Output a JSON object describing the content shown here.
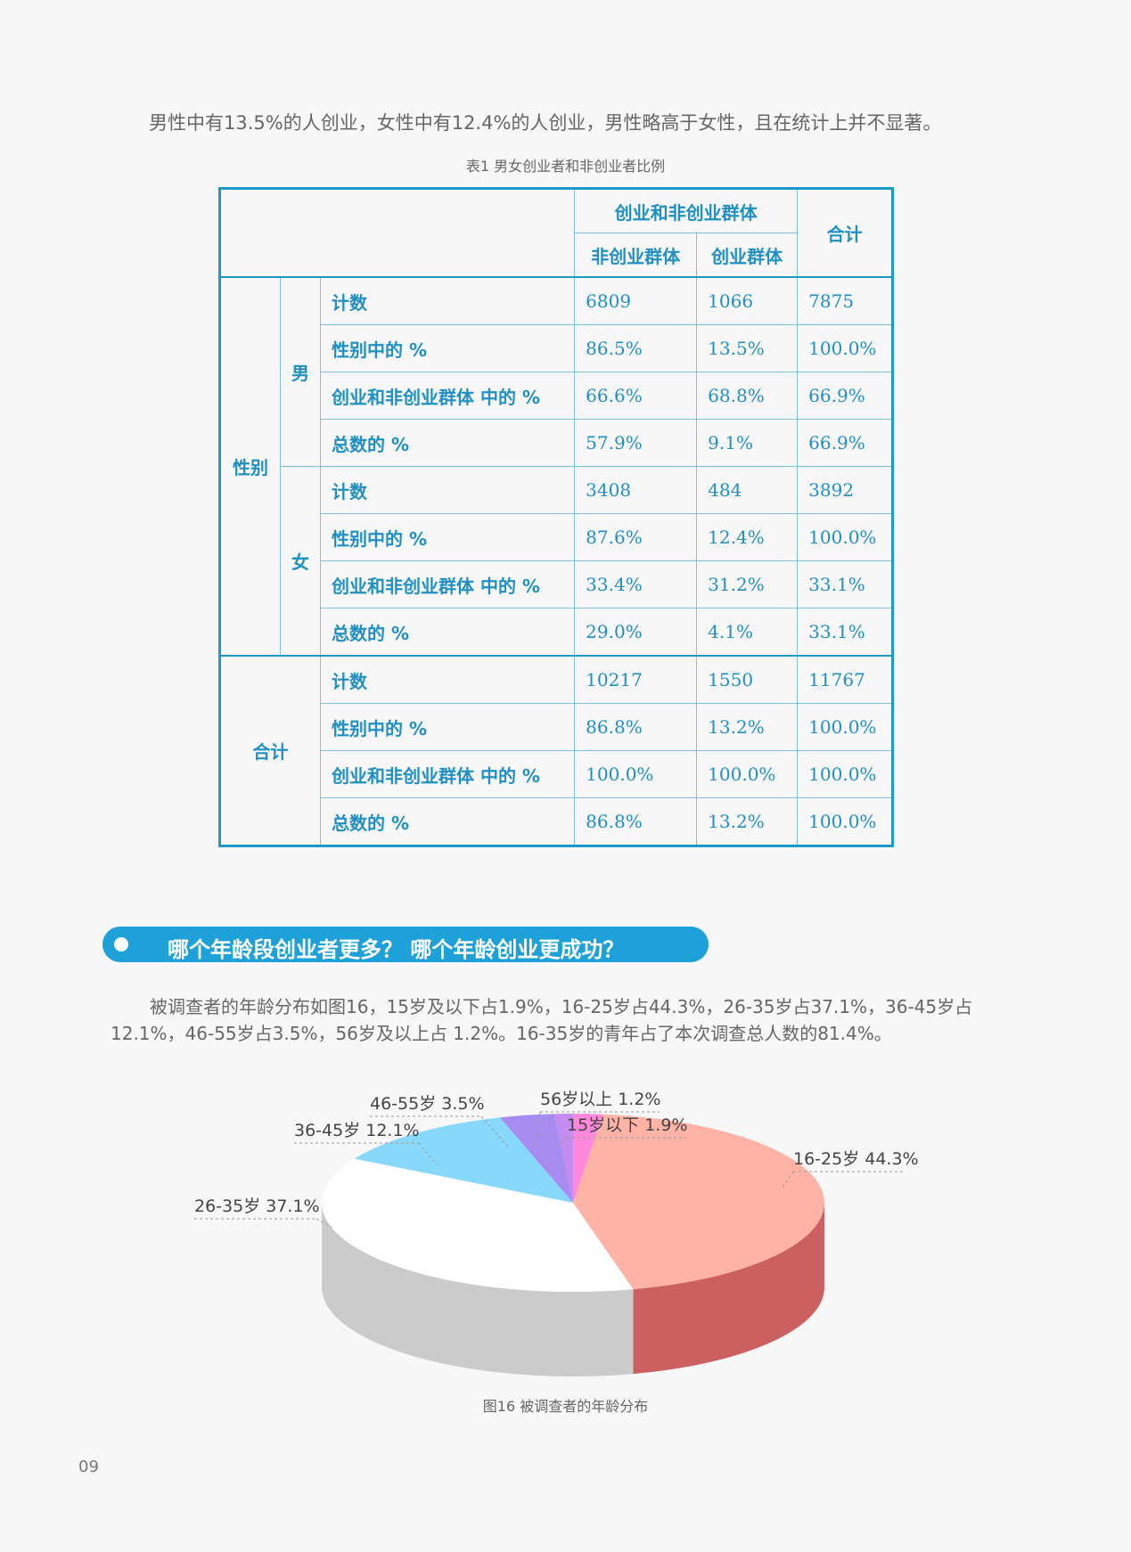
{
  "intro_text": "男性中有13.5%的人创业，女性中有12.4%的人创业，男性略高于女性，且在统计上并不显著。",
  "table_caption": "表1 男女创业者和非创业者比例",
  "table": {
    "header_group": "创业和非创业群体",
    "header_total": "合计",
    "col_nonstartup": "非创业群体",
    "col_startup": "创业群体",
    "row_group_gender": "性别",
    "male": "男",
    "female": "女",
    "total_group": "合计",
    "rows": [
      {
        "label": "计数",
        "values": [
          "6809",
          "1066",
          "7875"
        ]
      },
      {
        "label": "性别中的 %",
        "values": [
          "86.5%",
          "13.5%",
          "100.0%"
        ]
      },
      {
        "label": "创业和非创业群体 中的 %",
        "values": [
          "66.6%",
          "68.8%",
          "66.9%"
        ]
      },
      {
        "label": "总数的 %",
        "values": [
          "57.9%",
          "9.1%",
          "66.9%"
        ]
      },
      {
        "label": "计数",
        "values": [
          "3408",
          "484",
          "3892"
        ]
      },
      {
        "label": "性别中的 %",
        "values": [
          "87.6%",
          "12.4%",
          "100.0%"
        ]
      },
      {
        "label": "创业和非创业群体 中的 %",
        "values": [
          "33.4%",
          "31.2%",
          "33.1%"
        ]
      },
      {
        "label": "总数的 %",
        "values": [
          "29.0%",
          "4.1%",
          "33.1%"
        ]
      },
      {
        "label": "计数",
        "values": [
          "10217",
          "1550",
          "11767"
        ]
      },
      {
        "label": "性别中的 %",
        "values": [
          "86.8%",
          "13.2%",
          "100.0%"
        ]
      },
      {
        "label": "创业和非创业群体 中的 %",
        "values": [
          "100.0%",
          "100.0%",
          "100.0%"
        ]
      },
      {
        "label": "总数的 %",
        "values": [
          "86.8%",
          "13.2%",
          "100.0%"
        ]
      }
    ]
  },
  "section_title": "哪个年龄段创业者更多？ 哪个年龄创业更成功？",
  "body_text": "被调查者的年龄分布如图16，15岁及以下占1.9%，16-25岁占44.3%，26-35岁占37.1%，36-45岁占12.1%，46-55岁占3.5%，56岁及以上占 1.2%。16-35岁的青年占了本次调查总人数的81.4%。",
  "chart_data": {
    "type": "pie",
    "categories": [
      "15岁以下",
      "16-25岁",
      "26-35岁",
      "36-45岁",
      "46-55岁",
      "56岁以上"
    ],
    "values": [
      1.9,
      44.3,
      37.1,
      12.1,
      3.5,
      1.2
    ],
    "labels": [
      "15岁以下 1.9%",
      "16-25岁 44.3%",
      "26-35岁 37.1%",
      "36-45岁 12.1%",
      "46-55岁 3.5%",
      "56岁以上 1.2%"
    ],
    "colors": [
      "#ff88dd",
      "#ffb2a6",
      "#ffffff",
      "#88d8fb",
      "#a78cf0",
      "#c48cf0"
    ],
    "side_colors": [
      "#d070b8",
      "#cc5f5f",
      "#cbcbcb",
      "#6ab0cc",
      "#8870c8",
      "#a070c8"
    ]
  },
  "figure_caption": "图16 被调查者的年龄分布",
  "page_number": "09"
}
